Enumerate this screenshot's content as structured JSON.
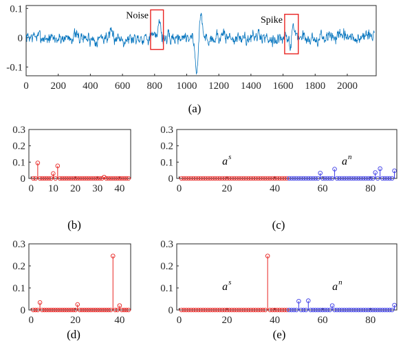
{
  "chart_data": [
    {
      "id": "a",
      "type": "line",
      "panel_label": "(a)",
      "xlim": [
        0,
        2180
      ],
      "ylim": [
        -0.13,
        0.11
      ],
      "xticks": [
        0,
        200,
        400,
        600,
        800,
        1000,
        1200,
        1400,
        1600,
        1800,
        2000
      ],
      "yticks": [
        -0.1,
        0,
        0.1
      ],
      "ytick_labels": [
        "-0.1",
        "0",
        "0.1"
      ],
      "line_color": "#0072BD",
      "n_points": 2170,
      "waveform": {
        "noise_std": 0.012,
        "events": [
          {
            "x": 830,
            "amp": 0.07
          },
          {
            "x": 1060,
            "amp": -0.12
          },
          {
            "x": 1090,
            "amp": 0.085
          },
          {
            "x": 1660,
            "amp": 0.055
          },
          {
            "x": 1645,
            "amp": -0.045
          }
        ]
      },
      "annotations": [
        {
          "text": "Noise",
          "box_x": [
            775,
            855
          ],
          "box_y": [
            -0.04,
            0.095
          ],
          "color": "#e8211f"
        },
        {
          "text": "Spike",
          "box_x": [
            1610,
            1695
          ],
          "box_y": [
            -0.055,
            0.08
          ],
          "color": "#e8211f"
        }
      ]
    },
    {
      "id": "b",
      "type": "stem",
      "panel_label": "(b)",
      "xlim": [
        -1,
        45
      ],
      "ylim": [
        0,
        0.3
      ],
      "xticks": [
        0,
        10,
        20,
        30,
        40
      ],
      "yticks": [
        0,
        0.1,
        0.2,
        0.3
      ],
      "ytick_labels": [
        "0",
        "0.1",
        "0.2",
        "0.3"
      ],
      "series": [
        {
          "start": 1,
          "count": 44,
          "color": "#e8211f",
          "nonzero": [
            [
              3,
              0.095
            ],
            [
              10,
              0.03
            ],
            [
              12,
              0.077
            ],
            [
              33,
              0.008
            ]
          ]
        }
      ]
    },
    {
      "id": "c",
      "type": "stem",
      "panel_label": "(c)",
      "xlim": [
        -1,
        91
      ],
      "ylim": [
        0,
        0.3
      ],
      "xticks": [
        0,
        20,
        40,
        60,
        80
      ],
      "yticks": [
        0,
        0.1,
        0.2,
        0.3
      ],
      "ytick_labels": [
        "0",
        "0.1",
        "0.2",
        "0.3"
      ],
      "series": [
        {
          "start": 1,
          "count": 45,
          "color": "#e8211f",
          "nonzero": []
        },
        {
          "start": 46,
          "count": 45,
          "color": "#3a3ae6",
          "nonzero": [
            [
              59,
              0.033
            ],
            [
              65,
              0.057
            ],
            [
              82,
              0.036
            ],
            [
              84,
              0.06
            ],
            [
              90,
              0.047
            ]
          ]
        }
      ],
      "labels": [
        {
          "base": "a",
          "sup": "s",
          "x": 18,
          "y": 0.085
        },
        {
          "base": "a",
          "sup": "n",
          "x": 68,
          "y": 0.085
        }
      ]
    },
    {
      "id": "d",
      "type": "stem",
      "panel_label": "(d)",
      "xlim": [
        -1,
        45
      ],
      "ylim": [
        0,
        0.3
      ],
      "xticks": [
        0,
        20,
        40
      ],
      "yticks": [
        0,
        0.1,
        0.2,
        0.3
      ],
      "ytick_labels": [
        "0",
        "0.1",
        "0.2",
        "0.3"
      ],
      "series": [
        {
          "start": 1,
          "count": 44,
          "color": "#e8211f",
          "nonzero": [
            [
              4,
              0.034
            ],
            [
              21,
              0.025
            ],
            [
              37,
              0.245
            ],
            [
              40,
              0.02
            ]
          ]
        }
      ]
    },
    {
      "id": "e",
      "type": "stem",
      "panel_label": "(e)",
      "xlim": [
        -1,
        91
      ],
      "ylim": [
        0,
        0.3
      ],
      "xticks": [
        0,
        20,
        40,
        60,
        80
      ],
      "yticks": [
        0,
        0.1,
        0.2,
        0.3
      ],
      "ytick_labels": [
        "0",
        "0.1",
        "0.2",
        "0.3"
      ],
      "series": [
        {
          "start": 1,
          "count": 45,
          "color": "#e8211f",
          "nonzero": [
            [
              37,
              0.245
            ]
          ]
        },
        {
          "start": 46,
          "count": 45,
          "color": "#3a3ae6",
          "nonzero": [
            [
              50,
              0.04
            ],
            [
              54,
              0.042
            ],
            [
              64,
              0.02
            ],
            [
              90,
              0.022
            ]
          ]
        }
      ],
      "labels": [
        {
          "base": "a",
          "sup": "s",
          "x": 18,
          "y": 0.09
        },
        {
          "base": "a",
          "sup": "n",
          "x": 64,
          "y": 0.09
        }
      ]
    }
  ]
}
